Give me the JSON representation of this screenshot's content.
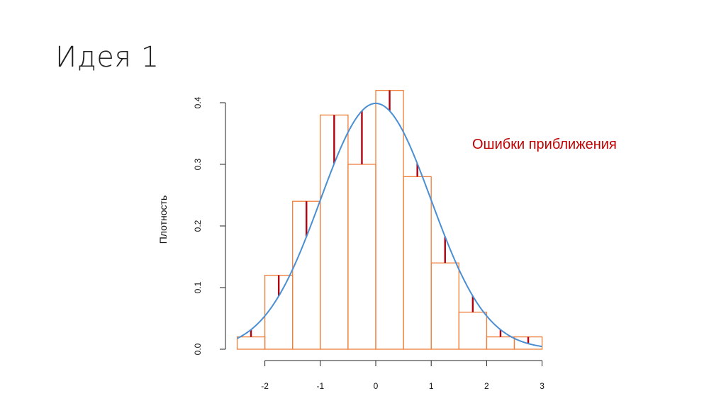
{
  "slide": {
    "title": "Идея 1"
  },
  "annotation": {
    "text": "Ошибки приближения",
    "color": "#c00000"
  },
  "colors": {
    "histogram_bars": "#ef7f3b",
    "density_curve": "#4a8fd3",
    "error_lines": "#b3000f",
    "axis": "#222222"
  },
  "chart_data": {
    "type": "bar",
    "title": "",
    "xlabel": "",
    "ylabel": "Плотность",
    "xlim": [
      -2.5,
      3
    ],
    "ylim": [
      0,
      0.4
    ],
    "x_ticks": [
      -2,
      -1,
      0,
      1,
      2,
      3
    ],
    "y_ticks": [
      0.0,
      0.1,
      0.2,
      0.3,
      0.4
    ],
    "x_tick_labels": [
      "-2",
      "-1",
      "0",
      "1",
      "2",
      "3"
    ],
    "y_tick_labels": [
      "0.0",
      "0.1",
      "0.2",
      "0.3",
      "0.4"
    ],
    "histogram": {
      "bin_edges": [
        -2.5,
        -2.0,
        -1.5,
        -1.0,
        -0.5,
        0.0,
        0.5,
        1.0,
        1.5,
        2.0,
        2.5,
        3.0
      ],
      "densities": [
        0.02,
        0.12,
        0.24,
        0.38,
        0.3,
        0.42,
        0.28,
        0.14,
        0.06,
        0.02,
        0.02
      ]
    },
    "curve": {
      "type": "line",
      "name": "",
      "description": "normal density N(0,1)",
      "x_range": [
        -2.5,
        3
      ]
    },
    "error_lines": {
      "x": [
        -2.25,
        -1.75,
        -1.25,
        -0.75,
        -0.25,
        0.25,
        0.75,
        1.25,
        1.75,
        2.25,
        2.75
      ]
    },
    "grid": false,
    "legend": "none"
  }
}
